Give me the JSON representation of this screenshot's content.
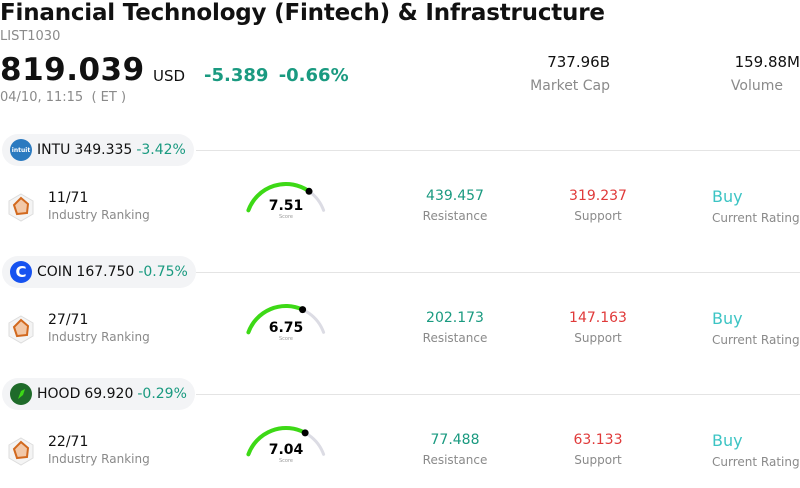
{
  "header": {
    "title": "Financial Technology (Fintech) & Infrastructure",
    "code": "LIST1030",
    "price": "819.039",
    "currency": "USD",
    "change": "-5.389",
    "change_pct": "-0.66%",
    "timestamp": "04/10, 11:15  ( ET )"
  },
  "stats": {
    "market_cap_value": "737.96B",
    "market_cap_label": "Market Cap",
    "volume_value": "159.88M",
    "volume_label": "Volume"
  },
  "stocks": [
    {
      "ticker": "INTU",
      "price": "349.335",
      "change_pct": "-3.42%",
      "logo_icon": "intuit-logo-icon",
      "logo_color": "#2a7ac0",
      "logo_text": "intuit",
      "ranking": "11/71",
      "ranking_label": "Industry Ranking",
      "score": "7.51",
      "score_value": 7.51,
      "score_label": "Score",
      "resistance": "439.457",
      "resistance_label": "Resistance",
      "support": "319.237",
      "support_label": "Support",
      "rating": "Buy",
      "rating_label": "Current Rating"
    },
    {
      "ticker": "COIN",
      "price": "167.750",
      "change_pct": "-0.75%",
      "logo_icon": "coinbase-logo-icon",
      "logo_color": "#1652f0",
      "logo_text": "C",
      "ranking": "27/71",
      "ranking_label": "Industry Ranking",
      "score": "6.75",
      "score_value": 6.75,
      "score_label": "Score",
      "resistance": "202.173",
      "resistance_label": "Resistance",
      "support": "147.163",
      "support_label": "Support",
      "rating": "Buy",
      "rating_label": "Current Rating"
    },
    {
      "ticker": "HOOD",
      "price": "69.920",
      "change_pct": "-0.29%",
      "logo_icon": "robinhood-logo-icon",
      "logo_color": "#1f6b2a",
      "logo_text": "",
      "ranking": "22/71",
      "ranking_label": "Industry Ranking",
      "score": "7.04",
      "score_value": 7.04,
      "score_label": "Score",
      "resistance": "77.488",
      "resistance_label": "Resistance",
      "support": "63.133",
      "support_label": "Support",
      "rating": "Buy",
      "rating_label": "Current Rating"
    }
  ],
  "colors": {
    "positive_change": "#1a9a80",
    "support": "#e03a3a",
    "rating": "#3cc4c4",
    "gauge_fill": "#3dd916",
    "gauge_track": "#dcdce4",
    "ranking_icon": "#d2691e"
  }
}
